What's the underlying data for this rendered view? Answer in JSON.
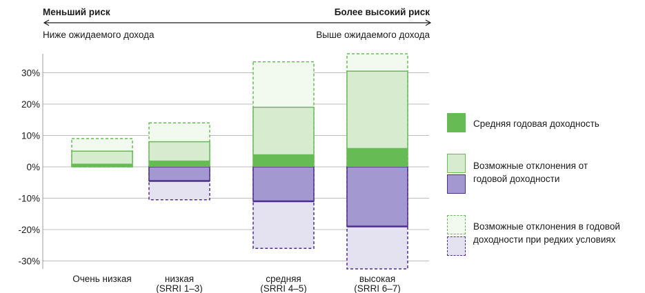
{
  "header": {
    "left_title": "Меньший риск",
    "right_title": "Более высокий риск",
    "left_sub": "Ниже ожидаемого дохода",
    "right_sub": "Выше ожидаемого дохода"
  },
  "legend": {
    "average": "Средняя годовая доходность",
    "possible_line1": "Возможные отклонения от",
    "possible_line2": "годовой доходности",
    "rare_line1": "Возможные отклонения в годовой",
    "rare_line2": "доходности при редких условиях"
  },
  "colors": {
    "green_solid": "#66bb55",
    "green_light": "#d7ebcf",
    "green_pale": "#f2f9ee",
    "purple_solid": "#a398cf",
    "purple_pale": "#e4e1f1",
    "purple_border": "#4d2d8c",
    "green_border": "#66bb55"
  },
  "chart_data": {
    "type": "bar",
    "ylim": [
      -33,
      33
    ],
    "yticks": [
      30,
      20,
      10,
      0,
      -10,
      -20,
      -30
    ],
    "ytick_labels": [
      "30%",
      "20%",
      "10%",
      "0%",
      "-10%",
      "-20%",
      "-30%"
    ],
    "categories": [
      {
        "line1": "Очень низкая",
        "line2": ""
      },
      {
        "line1": "низкая",
        "line2": "(SRRI 1–3)"
      },
      {
        "line1": "средняя",
        "line2": "(SRRI 4–5)"
      },
      {
        "line1": "высокая",
        "line2": "(SRRI 6–7)"
      }
    ],
    "series": {
      "average": [
        1,
        2,
        4,
        6
      ],
      "possible_upper": [
        5,
        8,
        19,
        30.5
      ],
      "possible_lower": [
        0,
        -4.5,
        -11,
        -19
      ],
      "rare_upper": [
        9,
        14,
        33.5,
        38
      ],
      "rare_lower": [
        0,
        -10.5,
        -26,
        -34
      ]
    }
  }
}
